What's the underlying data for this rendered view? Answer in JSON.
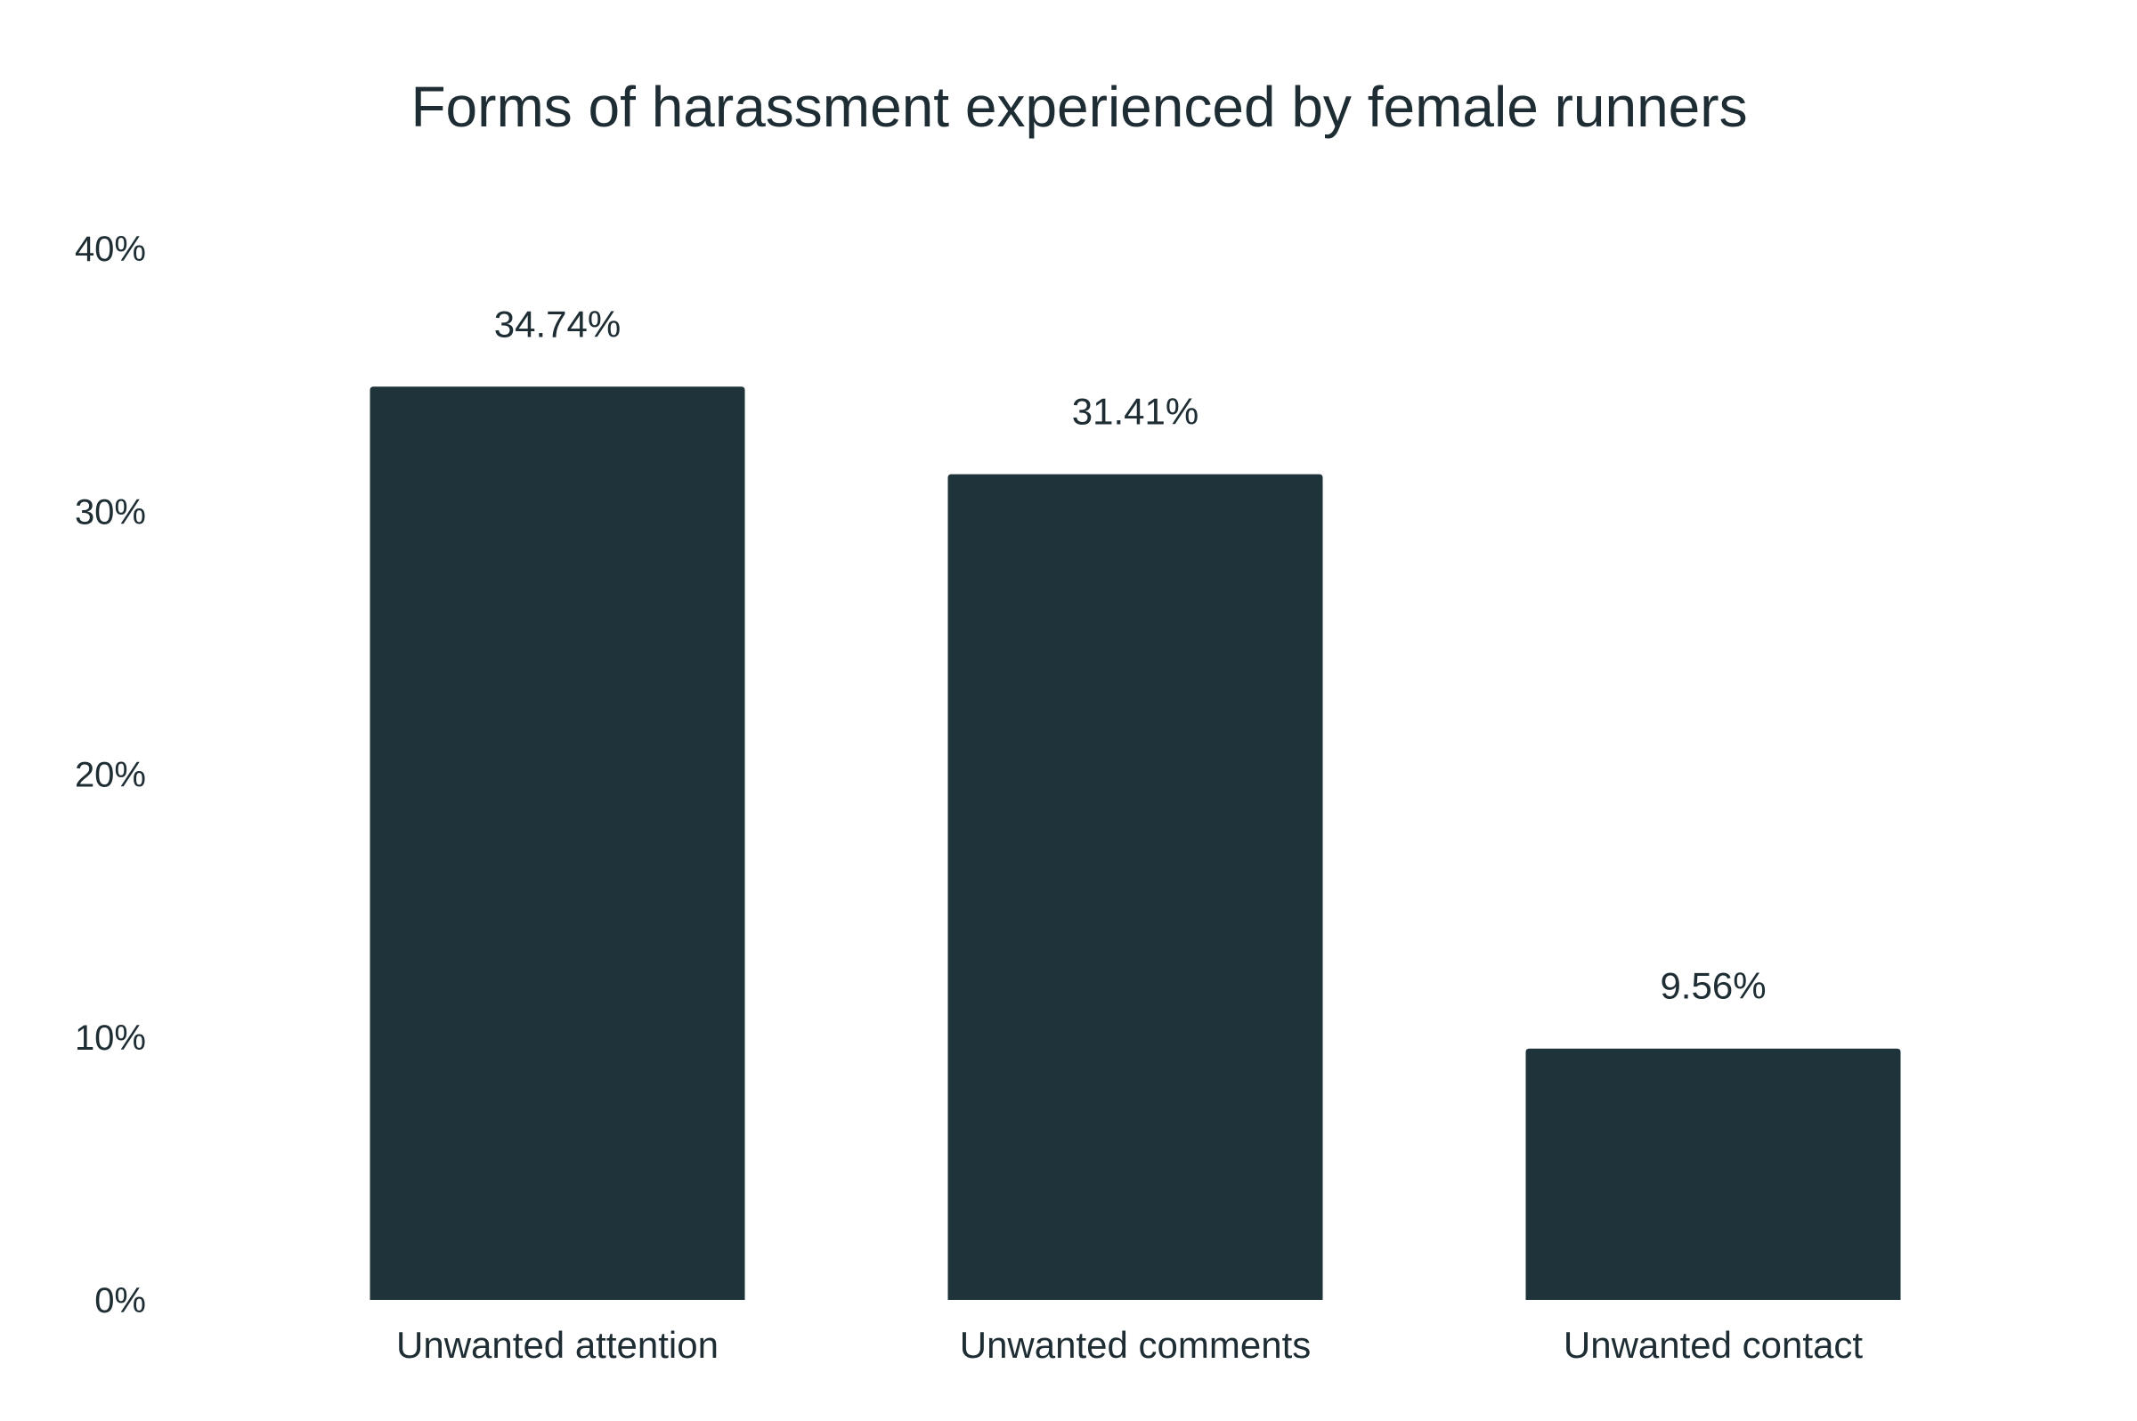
{
  "chart_data": {
    "type": "bar",
    "title": "Forms of harassment experienced by female runners",
    "categories": [
      "Unwanted attention",
      "Unwanted comments",
      "Unwanted contact"
    ],
    "values": [
      34.74,
      31.41,
      9.56
    ],
    "value_labels": [
      "34.74%",
      "31.41%",
      "9.56%"
    ],
    "ylim": [
      0,
      40
    ],
    "y_ticks": [
      0,
      10,
      20,
      30,
      40
    ],
    "y_tick_labels": [
      "0%",
      "10%",
      "20%",
      "30%",
      "40%"
    ],
    "xlabel": "",
    "ylabel": "",
    "grid": false,
    "legend": "none"
  },
  "colors": {
    "bar": "#1e333a",
    "text": "#1e2d33",
    "background": "#ffffff"
  }
}
